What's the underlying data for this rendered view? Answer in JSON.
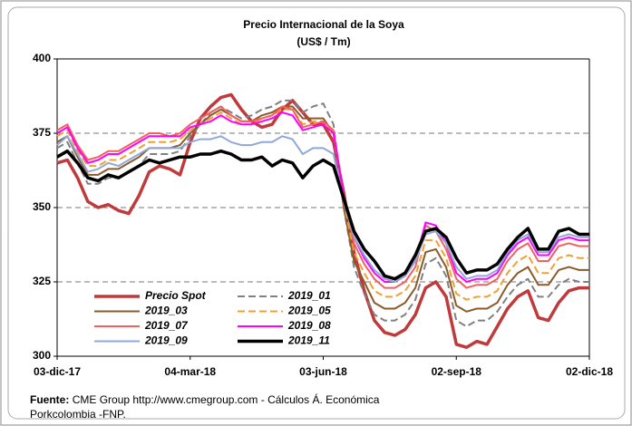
{
  "chart_data": {
    "type": "line",
    "title": "Precio Internacional de la Soya",
    "subtitle": "(US$ / Tm)",
    "categories": [
      "03-dic-17",
      null,
      null,
      null,
      null,
      null,
      null,
      null,
      null,
      null,
      null,
      null,
      null,
      "04-mar-18",
      null,
      null,
      null,
      null,
      null,
      null,
      null,
      null,
      null,
      null,
      null,
      null,
      "03-jun-18",
      null,
      null,
      null,
      null,
      null,
      null,
      null,
      null,
      null,
      null,
      null,
      null,
      "02-sep-18",
      null,
      null,
      null,
      null,
      null,
      null,
      null,
      null,
      null,
      null,
      null,
      null,
      "02-dic-18"
    ],
    "ylim": [
      300,
      400
    ],
    "yticks": [
      300,
      325,
      350,
      375,
      400
    ],
    "grid": true,
    "series": [
      {
        "name": "Precio Spot",
        "color": "#c0393b",
        "values": [
          365,
          366,
          360,
          352,
          350,
          351,
          349,
          348,
          354,
          362,
          364,
          363,
          361,
          372,
          380,
          384,
          387,
          388,
          383,
          379,
          377,
          378,
          383,
          386,
          382,
          378,
          378,
          372,
          355,
          335,
          322,
          312,
          308,
          307,
          309,
          314,
          323,
          325,
          320,
          304,
          303,
          305,
          304,
          310,
          316,
          320,
          322,
          313,
          312,
          318,
          322,
          323,
          323
        ]
      },
      {
        "name": "2019_01",
        "color": "#808080",
        "dash": true,
        "values": [
          370,
          372,
          365,
          358,
          358,
          360,
          360,
          362,
          364,
          368,
          368,
          368,
          369,
          374,
          378,
          382,
          384,
          382,
          380,
          381,
          383,
          384,
          386,
          386,
          382,
          384,
          385,
          378,
          350,
          330,
          321,
          314,
          312,
          312,
          314,
          319,
          331,
          333,
          327,
          312,
          310,
          312,
          312,
          315,
          320,
          324,
          326,
          320,
          320,
          324,
          326,
          325,
          325
        ]
      },
      {
        "name": "2019_03",
        "color": "#8b5a2b",
        "values": [
          372,
          374,
          367,
          361,
          361,
          363,
          363,
          365,
          367,
          370,
          370,
          370,
          371,
          375,
          378,
          381,
          383,
          381,
          379,
          379,
          381,
          382,
          384,
          384,
          380,
          380,
          380,
          375,
          350,
          332,
          325,
          318,
          316,
          316,
          318,
          323,
          335,
          336,
          330,
          317,
          315,
          316,
          316,
          318,
          324,
          328,
          330,
          324,
          324,
          329,
          330,
          329,
          329
        ]
      },
      {
        "name": "2019_05",
        "color": "#f0a030",
        "dash": true,
        "values": [
          374,
          376,
          369,
          364,
          364,
          366,
          366,
          368,
          370,
          372,
          372,
          372,
          373,
          376,
          378,
          380,
          382,
          380,
          378,
          378,
          380,
          381,
          383,
          383,
          378,
          379,
          379,
          375,
          352,
          335,
          328,
          322,
          320,
          320,
          322,
          327,
          339,
          339,
          333,
          321,
          319,
          320,
          320,
          322,
          328,
          332,
          334,
          328,
          328,
          333,
          334,
          333,
          333
        ]
      },
      {
        "name": "2019_07",
        "color": "#f26060",
        "values": [
          376,
          378,
          371,
          366,
          367,
          369,
          369,
          371,
          373,
          375,
          375,
          374,
          375,
          378,
          380,
          382,
          384,
          381,
          379,
          379,
          380,
          381,
          384,
          383,
          377,
          378,
          379,
          376,
          354,
          338,
          331,
          326,
          323,
          323,
          325,
          330,
          344,
          342,
          336,
          326,
          323,
          324,
          324,
          326,
          332,
          336,
          338,
          332,
          332,
          337,
          338,
          337,
          337
        ]
      },
      {
        "name": "2019_08",
        "color": "#ff00ff",
        "values": [
          375,
          377,
          370,
          365,
          366,
          368,
          368,
          370,
          372,
          374,
          374,
          374,
          374,
          377,
          378,
          379,
          381,
          379,
          378,
          378,
          379,
          380,
          382,
          381,
          376,
          377,
          378,
          375,
          354,
          340,
          333,
          328,
          325,
          325,
          327,
          332,
          345,
          344,
          338,
          328,
          325,
          326,
          326,
          328,
          334,
          338,
          340,
          334,
          334,
          339,
          340,
          339,
          339
        ]
      },
      {
        "name": "2019_09",
        "color": "#8fa8d8",
        "values": [
          371,
          374,
          368,
          362,
          363,
          365,
          364,
          366,
          368,
          370,
          370,
          370,
          370,
          372,
          373,
          373,
          374,
          372,
          371,
          371,
          372,
          372,
          374,
          373,
          368,
          370,
          370,
          368,
          352,
          340,
          334,
          329,
          326,
          325,
          327,
          332,
          341,
          342,
          338,
          330,
          326,
          327,
          327,
          329,
          335,
          339,
          341,
          335,
          335,
          340,
          341,
          340,
          340
        ]
      },
      {
        "name": "2019_11",
        "color": "#000000",
        "values": [
          367,
          369,
          365,
          360,
          359,
          361,
          360,
          362,
          364,
          366,
          365,
          366,
          367,
          367,
          368,
          368,
          369,
          368,
          366,
          366,
          367,
          364,
          366,
          365,
          360,
          364,
          366,
          364,
          353,
          342,
          336,
          332,
          327,
          326,
          328,
          334,
          342,
          343,
          340,
          333,
          328,
          329,
          329,
          331,
          336,
          340,
          343,
          336,
          336,
          342,
          343,
          341,
          341
        ]
      }
    ],
    "source": {
      "label": "Fuente:",
      "text": "CME Group http://www.cmegroup.com - Cálculos Á. Económica",
      "text2": "Porkcolombia  -FNP."
    }
  }
}
